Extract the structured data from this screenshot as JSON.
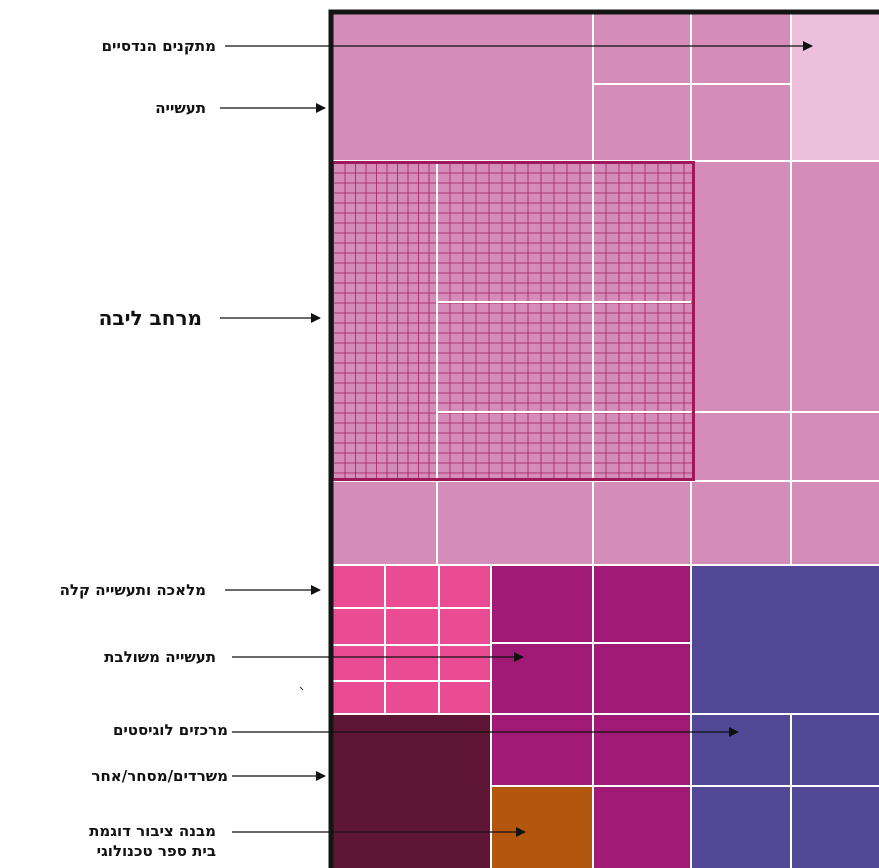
{
  "colors": {
    "engineering_facilities": "#ecbfdc",
    "industry": "#d48cb8",
    "industry_grid_line": "#a21a5c",
    "core_outline": "#a0185a",
    "light_industry": "#ea4c94",
    "mixed_industry": "#a01a76",
    "logistics": "#524895",
    "offices_commerce": "#5f1634",
    "public_building": "#b3570e",
    "outer_border": "#151515",
    "grid_line": "#ffffff"
  },
  "labels": {
    "engineering_facilities": "מתקנים הנדסיים",
    "industry": "תעשייה",
    "core_area": "מרחב ליבה",
    "light_industry": "מלאכה ותעשייה קלה",
    "mixed_industry": "תעשייה משולבת",
    "logistics": "מרכזים לוגיסטים",
    "offices": "משרדים/מסחר/אחר",
    "public_building_line1": "מבנה ציבור דוגמת",
    "public_building_line2": "בית ספר טכנולוגי"
  }
}
